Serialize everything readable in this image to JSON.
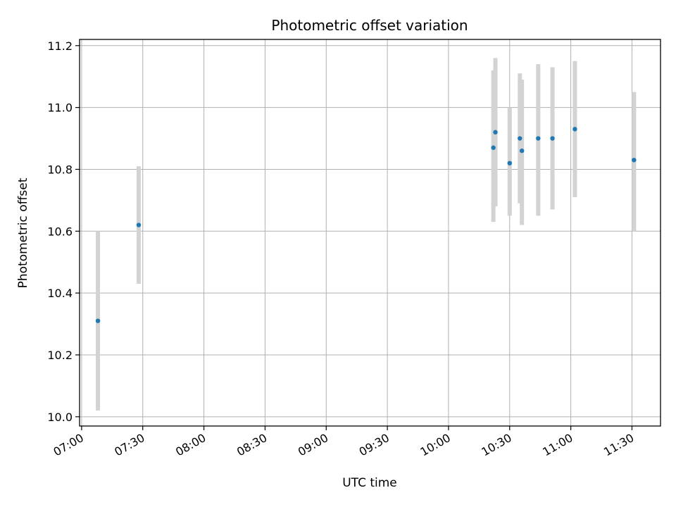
{
  "chart_data": {
    "type": "scatter",
    "title": "Photometric offset variation",
    "xlabel": "UTC time",
    "ylabel": "Photometric offset",
    "x_ticks": [
      "07:00",
      "07:30",
      "08:00",
      "08:30",
      "09:00",
      "09:30",
      "10:00",
      "10:30",
      "11:00",
      "11:30"
    ],
    "y_ticks": [
      "10.0",
      "10.2",
      "10.4",
      "10.6",
      "10.8",
      "11.0",
      "11.2"
    ],
    "xlim": [
      "06:59",
      "11:44"
    ],
    "ylim": [
      9.97,
      11.22
    ],
    "grid": true,
    "marker_color": "#1f77b4",
    "errorbar_color": "#d3d3d3",
    "series": [
      {
        "points": [
          {
            "x": "07:08",
            "y": 10.31,
            "ylow": 10.02,
            "yhigh": 10.6
          },
          {
            "x": "07:28",
            "y": 10.62,
            "ylow": 10.43,
            "yhigh": 10.81
          },
          {
            "x": "10:22",
            "y": 10.87,
            "ylow": 10.63,
            "yhigh": 11.12
          },
          {
            "x": "10:23",
            "y": 10.92,
            "ylow": 10.68,
            "yhigh": 11.16
          },
          {
            "x": "10:30",
            "y": 10.82,
            "ylow": 10.65,
            "yhigh": 11.0
          },
          {
            "x": "10:35",
            "y": 10.9,
            "ylow": 10.69,
            "yhigh": 11.11
          },
          {
            "x": "10:36",
            "y": 10.86,
            "ylow": 10.62,
            "yhigh": 11.09
          },
          {
            "x": "10:44",
            "y": 10.9,
            "ylow": 10.65,
            "yhigh": 11.14
          },
          {
            "x": "10:51",
            "y": 10.9,
            "ylow": 10.67,
            "yhigh": 11.13
          },
          {
            "x": "11:02",
            "y": 10.93,
            "ylow": 10.71,
            "yhigh": 11.15
          },
          {
            "x": "11:31",
            "y": 10.83,
            "ylow": 10.6,
            "yhigh": 11.05
          }
        ]
      }
    ]
  }
}
